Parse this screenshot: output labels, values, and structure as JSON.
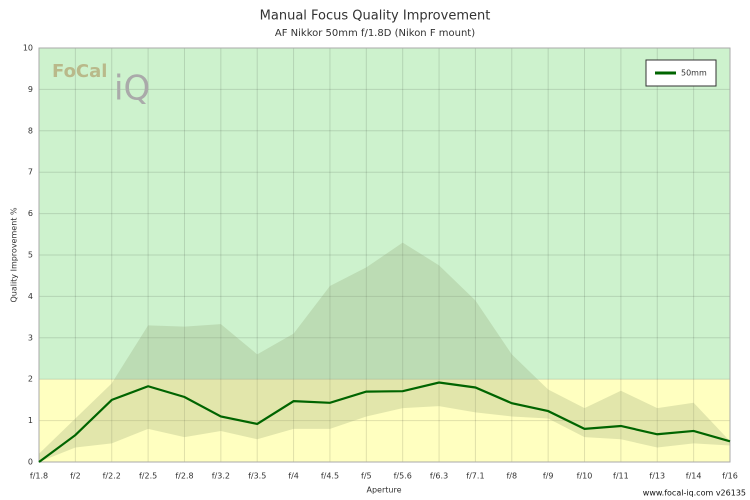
{
  "chart_data": {
    "type": "line",
    "title": "Manual Focus Quality Improvement",
    "subtitle": "AF Nikkor 50mm f/1.8D (Nikon F mount)",
    "x_label": "Aperture",
    "y_label": "Quality Improvement %",
    "logo": {
      "left": "FoCal",
      "right": "iQ"
    },
    "footer": "www.focal-iq.com  v26135",
    "categories": [
      "f/1.8",
      "f/2",
      "f/2.2",
      "f/2.5",
      "f/2.8",
      "f/3.2",
      "f/3.5",
      "f/4",
      "f/4.5",
      "f/5",
      "f/5.6",
      "f/6.3",
      "f/7.1",
      "f/8",
      "f/9",
      "f/10",
      "f/11",
      "f/13",
      "f/14",
      "f/16"
    ],
    "series": [
      {
        "name": "50mm",
        "color": "#006400",
        "values": [
          0,
          0.65,
          1.5,
          1.83,
          1.57,
          1.1,
          0.92,
          1.47,
          1.43,
          1.7,
          1.71,
          1.92,
          1.8,
          1.42,
          1.23,
          0.8,
          0.87,
          0.67,
          0.75,
          0.5
        ]
      }
    ],
    "band": {
      "color": "#8a9a6a",
      "upper": [
        0.2,
        1.05,
        1.9,
        3.3,
        3.27,
        3.33,
        2.6,
        3.1,
        4.25,
        4.7,
        5.3,
        4.75,
        3.9,
        2.6,
        1.75,
        1.3,
        1.72,
        1.3,
        1.43,
        0.5
      ],
      "lower": [
        0,
        0.35,
        0.45,
        0.8,
        0.6,
        0.75,
        0.55,
        0.8,
        0.8,
        1.1,
        1.3,
        1.35,
        1.2,
        1.1,
        1.05,
        0.6,
        0.55,
        0.35,
        0.45,
        0.4
      ]
    },
    "zones": [
      {
        "from": 0,
        "to": 2,
        "color": "#ffffc0"
      },
      {
        "from": 2,
        "to": 10,
        "color": "#cdf2cd"
      }
    ],
    "ylim": [
      0,
      10
    ],
    "yticks": [
      0,
      1,
      2,
      3,
      4,
      5,
      6,
      7,
      8,
      9,
      10
    ],
    "grid": true,
    "legend": "top-right"
  }
}
